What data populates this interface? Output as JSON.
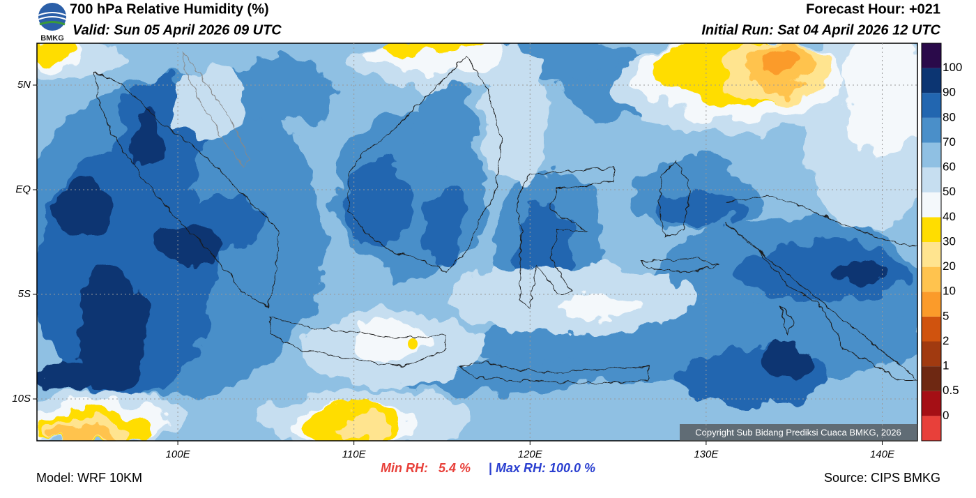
{
  "header": {
    "logo": "BMKG",
    "title": "700 hPa Relative Humidity (%)",
    "valid": "Valid: Sun 05 April 2026 09 UTC",
    "forecast_hour": "Forecast Hour: +021",
    "initial_run": "Initial Run: Sat 04 April 2026 12 UTC"
  },
  "map": {
    "lon_range": [
      92,
      142
    ],
    "lat_range": [
      -12,
      7
    ],
    "lon_ticks": [
      {
        "value": 100,
        "label": "100E"
      },
      {
        "value": 110,
        "label": "110E"
      },
      {
        "value": 120,
        "label": "120E"
      },
      {
        "value": 130,
        "label": "130E"
      },
      {
        "value": 140,
        "label": "140E"
      }
    ],
    "lat_ticks": [
      {
        "value": 5,
        "label": "5N"
      },
      {
        "value": 0,
        "label": "EQ"
      },
      {
        "value": -5,
        "label": "5S"
      },
      {
        "value": -10,
        "label": "10S"
      }
    ],
    "grid": true,
    "copyright": "Copyright Sub Bidang Prediksi Cuaca BMKG, 2026"
  },
  "colorbar": {
    "levels": [
      0,
      0.5,
      1,
      2,
      5,
      10,
      20,
      30,
      40,
      50,
      60,
      70,
      80,
      90,
      100
    ],
    "colors": [
      "#e8403a",
      "#a50f15",
      "#6e2812",
      "#a13a10",
      "#d0530e",
      "#fb9b2a",
      "#ffc34e",
      "#ffe48f",
      "#ffdd00",
      "#f4f8fb",
      "#c6def0",
      "#8fc0e3",
      "#4a8fc9",
      "#2266b0",
      "#0c3572",
      "#2a0a4a"
    ]
  },
  "footer": {
    "model": "Model: WRF 10KM",
    "source": "Source: CIPS BMKG",
    "min_rh": "Min RH:   5.4 %",
    "separator": "|",
    "max_rh": "Max RH: 100.0 %"
  }
}
